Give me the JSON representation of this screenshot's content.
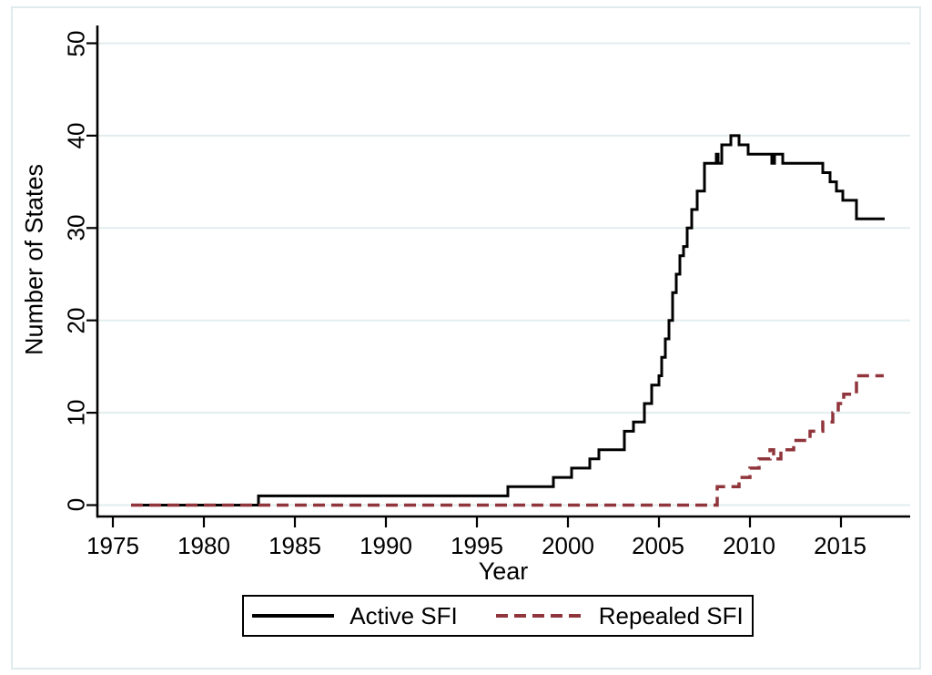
{
  "figure": {
    "background": "#ffffff",
    "frame_border_color": "#e0ebed"
  },
  "chart_data": {
    "type": "line",
    "subtype": "step",
    "title": "",
    "xlabel": "Year",
    "ylabel": "Number of States",
    "xlim": [
      1974.1,
      2018.8
    ],
    "ylim": [
      0,
      50
    ],
    "grid": "horizontal",
    "grid_color": "#e2edee",
    "axis_color": "#000000",
    "x_ticks": [
      1975,
      1980,
      1985,
      1990,
      1995,
      2000,
      2005,
      2010,
      2015
    ],
    "x_tick_labels": [
      "1975",
      "1980",
      "1985",
      "1990",
      "1995",
      "2000",
      "2005",
      "2010",
      "2015"
    ],
    "y_ticks": [
      0,
      10,
      20,
      30,
      40,
      50
    ],
    "y_tick_labels": [
      "0",
      "10",
      "20",
      "30",
      "40",
      "50"
    ],
    "legend_position": "bottom",
    "series": [
      {
        "name": "Active SFI",
        "color": "#000000",
        "style": "solid",
        "width": 3,
        "points": [
          [
            1976,
            0
          ],
          [
            1983,
            1
          ],
          [
            1996.7,
            2
          ],
          [
            1999.2,
            3
          ],
          [
            2000.2,
            4
          ],
          [
            2001.2,
            5
          ],
          [
            2001.7,
            6
          ],
          [
            2003.1,
            8
          ],
          [
            2003.6,
            9
          ],
          [
            2004.2,
            11
          ],
          [
            2004.6,
            13
          ],
          [
            2005.0,
            14
          ],
          [
            2005.15,
            16
          ],
          [
            2005.35,
            18
          ],
          [
            2005.55,
            20
          ],
          [
            2005.75,
            23
          ],
          [
            2005.95,
            25
          ],
          [
            2006.15,
            27
          ],
          [
            2006.35,
            28
          ],
          [
            2006.55,
            30
          ],
          [
            2006.8,
            32
          ],
          [
            2007.1,
            34
          ],
          [
            2007.5,
            37
          ],
          [
            2008.15,
            38
          ],
          [
            2008.25,
            37
          ],
          [
            2008.45,
            39
          ],
          [
            2008.95,
            40
          ],
          [
            2009.4,
            39
          ],
          [
            2009.9,
            38
          ],
          [
            2011.2,
            37
          ],
          [
            2011.35,
            38
          ],
          [
            2011.8,
            37
          ],
          [
            2014.0,
            36
          ],
          [
            2014.4,
            35
          ],
          [
            2014.75,
            34
          ],
          [
            2015.1,
            33
          ],
          [
            2015.85,
            31
          ],
          [
            2017.4,
            31
          ]
        ]
      },
      {
        "name": "Repealed SFI",
        "color": "#90353b",
        "style": "dashed",
        "width": 3.5,
        "points": [
          [
            1976,
            0
          ],
          [
            2008.2,
            2
          ],
          [
            2009.4,
            3
          ],
          [
            2010.0,
            4
          ],
          [
            2010.5,
            5
          ],
          [
            2011.1,
            6
          ],
          [
            2011.3,
            5
          ],
          [
            2011.7,
            6
          ],
          [
            2012.4,
            7
          ],
          [
            2013.3,
            8
          ],
          [
            2014.0,
            9
          ],
          [
            2014.55,
            10
          ],
          [
            2014.85,
            11
          ],
          [
            2015.15,
            12
          ],
          [
            2015.85,
            14
          ],
          [
            2017.35,
            14
          ]
        ]
      }
    ]
  },
  "legend": {
    "items": [
      {
        "label": "Active SFI"
      },
      {
        "label": "Repealed SFI"
      }
    ]
  }
}
